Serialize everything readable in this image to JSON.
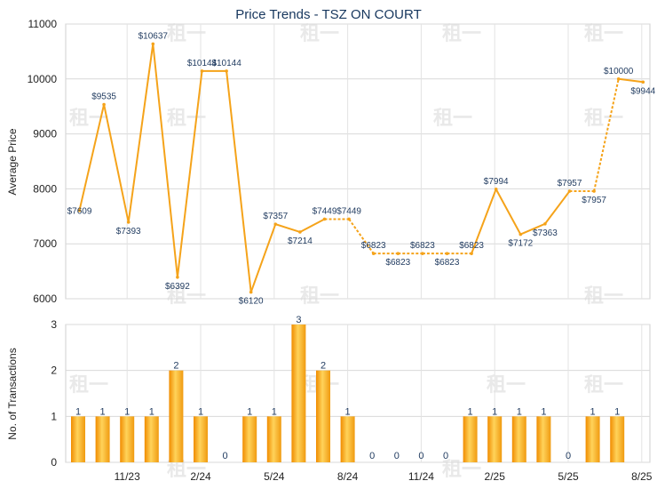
{
  "chart_data": [
    {
      "type": "line",
      "title": "Price Trends - TSZ ON COURT",
      "ylabel": "Average Price",
      "ylim": [
        6000,
        11000
      ],
      "yticks": [
        6000,
        7000,
        8000,
        9000,
        10000,
        11000
      ],
      "grid": true,
      "line_color": "#f5a31a",
      "values": [
        7609,
        9535,
        7393,
        10637,
        6392,
        10144,
        10144,
        6120,
        7357,
        7214,
        7449,
        7449,
        6823,
        6823,
        6823,
        6823,
        6823,
        7994,
        7172,
        7363,
        7957,
        7957,
        10000,
        9944
      ],
      "labels": [
        "$7609",
        "$9535",
        "$7393",
        "$10637",
        "$6392",
        "$10144",
        "$10144",
        "$6120",
        "$7357",
        "$7214",
        "$7449",
        "$7449",
        "$6823",
        "$6823",
        "$6823",
        "$6823",
        "$6823",
        "$7994",
        "$7172",
        "$7363",
        "$7957",
        "$7957",
        "$10000",
        "$9944"
      ],
      "interpolated": [
        false,
        false,
        false,
        false,
        false,
        false,
        false,
        false,
        false,
        false,
        false,
        true,
        false,
        true,
        true,
        true,
        false,
        false,
        false,
        false,
        false,
        true,
        false,
        false
      ]
    },
    {
      "type": "bar",
      "ylabel": "No. of Transactions",
      "ylim": [
        0,
        3
      ],
      "yticks": [
        0,
        1,
        2,
        3
      ],
      "grid": true,
      "bar_color": "#f5a31a",
      "xtick_labels": [
        "11/23",
        "2/24",
        "5/24",
        "8/24",
        "11/24",
        "2/25",
        "5/25",
        "8/25"
      ],
      "values": [
        1,
        1,
        1,
        1,
        2,
        1,
        0,
        1,
        1,
        3,
        2,
        1,
        0,
        0,
        0,
        0,
        1,
        1,
        1,
        1,
        0,
        1,
        1
      ]
    }
  ],
  "watermark": "租一"
}
